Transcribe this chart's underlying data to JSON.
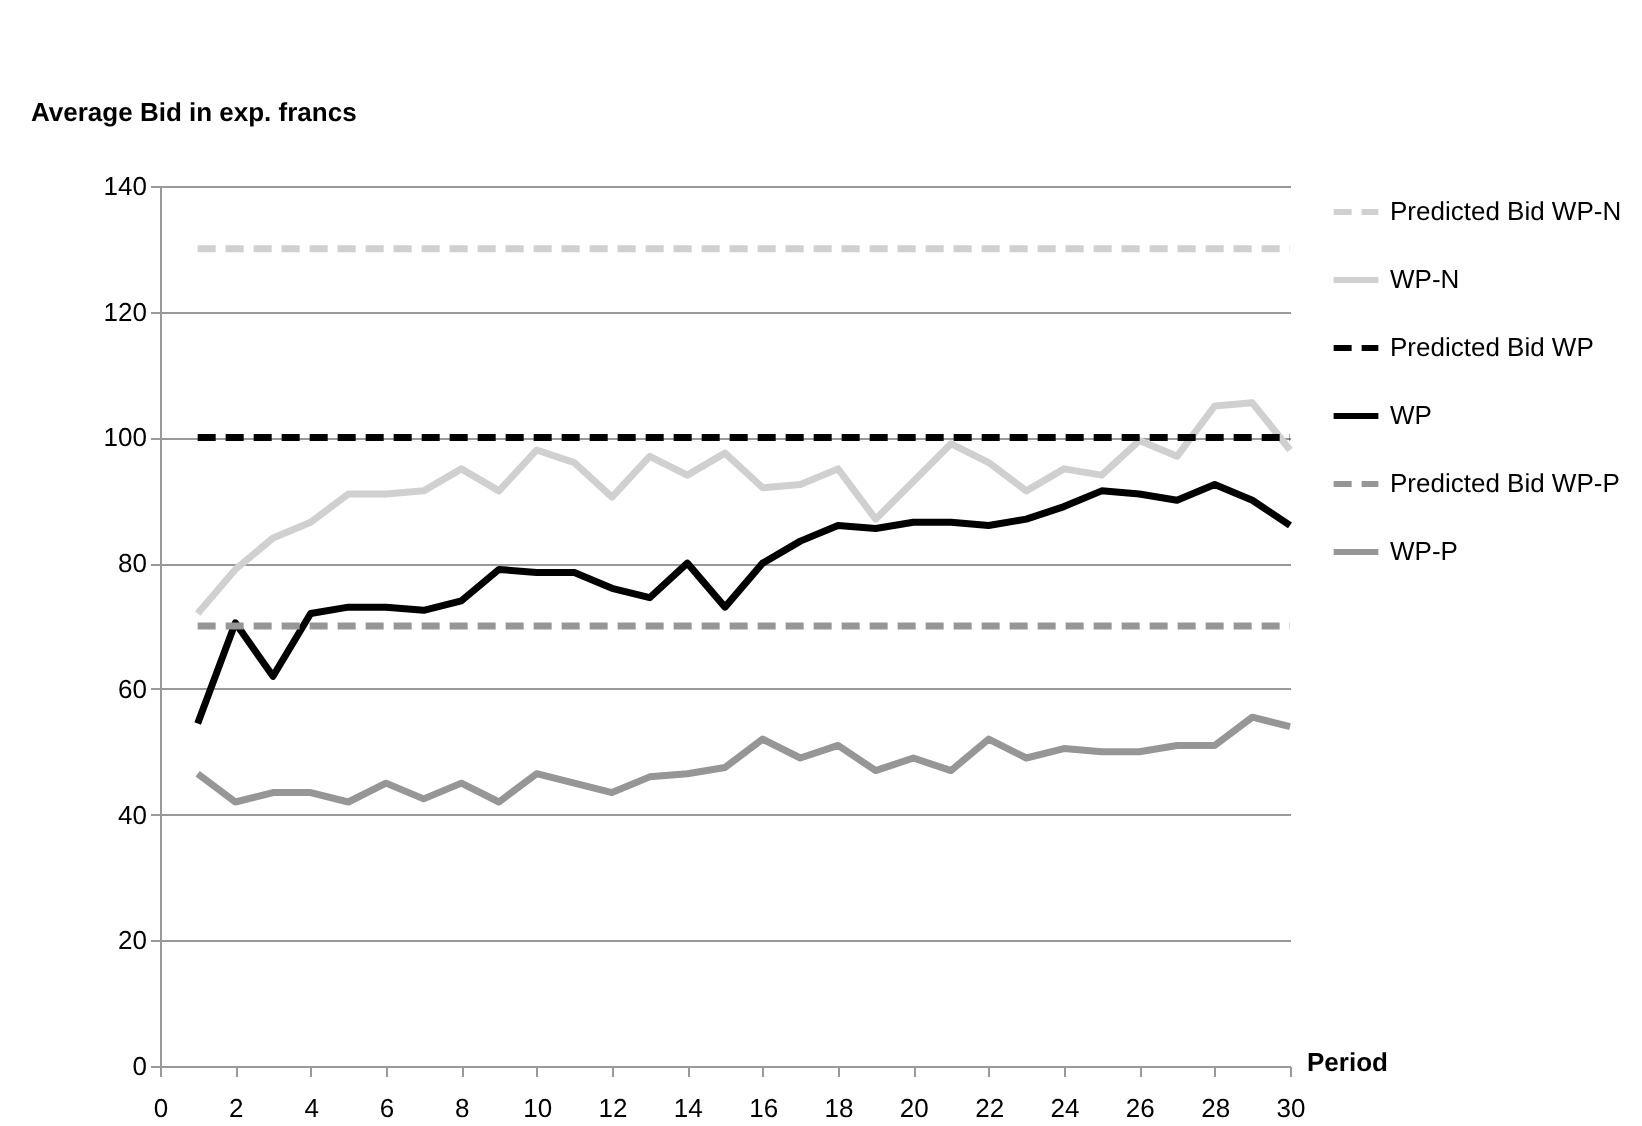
{
  "chart_data": {
    "type": "line",
    "ylabel": "Average Bid in exp. francs",
    "xlabel": "Period",
    "x": [
      1,
      2,
      3,
      4,
      5,
      6,
      7,
      8,
      9,
      10,
      11,
      12,
      13,
      14,
      15,
      16,
      17,
      18,
      19,
      20,
      21,
      22,
      23,
      24,
      25,
      26,
      27,
      28,
      29,
      30
    ],
    "xlim": [
      0,
      30
    ],
    "xticks": [
      0,
      2,
      4,
      6,
      8,
      10,
      12,
      14,
      16,
      18,
      20,
      22,
      24,
      26,
      28,
      30
    ],
    "ylim": [
      0,
      140
    ],
    "yticks": [
      0,
      20,
      40,
      60,
      80,
      100,
      120,
      140
    ],
    "grid": "y",
    "legend": "right",
    "marker": "none",
    "series": [
      {
        "name": "Predicted Bid WP-N",
        "color": "#d0d0d0",
        "line_style": "dashed",
        "values": [
          130,
          130,
          130,
          130,
          130,
          130,
          130,
          130,
          130,
          130,
          130,
          130,
          130,
          130,
          130,
          130,
          130,
          130,
          130,
          130,
          130,
          130,
          130,
          130,
          130,
          130,
          130,
          130,
          130,
          130
        ]
      },
      {
        "name": "WP-N",
        "color": "#d0d0d0",
        "line_style": "solid",
        "values": [
          72,
          79,
          84,
          86.5,
          91,
          91,
          91.5,
          95,
          91.5,
          98,
          96,
          90.5,
          97,
          94,
          97.5,
          92,
          92.5,
          95,
          87,
          93,
          99,
          96,
          91.5,
          95,
          94,
          99.5,
          97,
          105,
          105.5,
          98
        ]
      },
      {
        "name": "Predicted Bid WP",
        "color": "#000000",
        "line_style": "dashed",
        "values": [
          100,
          100,
          100,
          100,
          100,
          100,
          100,
          100,
          100,
          100,
          100,
          100,
          100,
          100,
          100,
          100,
          100,
          100,
          100,
          100,
          100,
          100,
          100,
          100,
          100,
          100,
          100,
          100,
          100,
          100
        ]
      },
      {
        "name": "WP",
        "color": "#000000",
        "line_style": "solid",
        "values": [
          54.5,
          70.5,
          62,
          72,
          73,
          73,
          72.5,
          74,
          79,
          78.5,
          78.5,
          76,
          74.5,
          80,
          73,
          80,
          83.5,
          86,
          85.5,
          86.5,
          86.5,
          86,
          87,
          89,
          91.5,
          91,
          90,
          92.5,
          90,
          86
        ]
      },
      {
        "name": "Predicted Bid WP-P",
        "color": "#969696",
        "line_style": "dashed",
        "values": [
          70,
          70,
          70,
          70,
          70,
          70,
          70,
          70,
          70,
          70,
          70,
          70,
          70,
          70,
          70,
          70,
          70,
          70,
          70,
          70,
          70,
          70,
          70,
          70,
          70,
          70,
          70,
          70,
          70,
          70
        ]
      },
      {
        "name": "WP-P",
        "color": "#969696",
        "line_style": "solid",
        "values": [
          46.5,
          42,
          43.5,
          43.5,
          42,
          45,
          42.5,
          45,
          42,
          46.5,
          45,
          43.5,
          46,
          46.5,
          47.5,
          52,
          49,
          51,
          47,
          49,
          47,
          52,
          49,
          50.5,
          50,
          50,
          51,
          51,
          55.5,
          54
        ]
      }
    ]
  }
}
